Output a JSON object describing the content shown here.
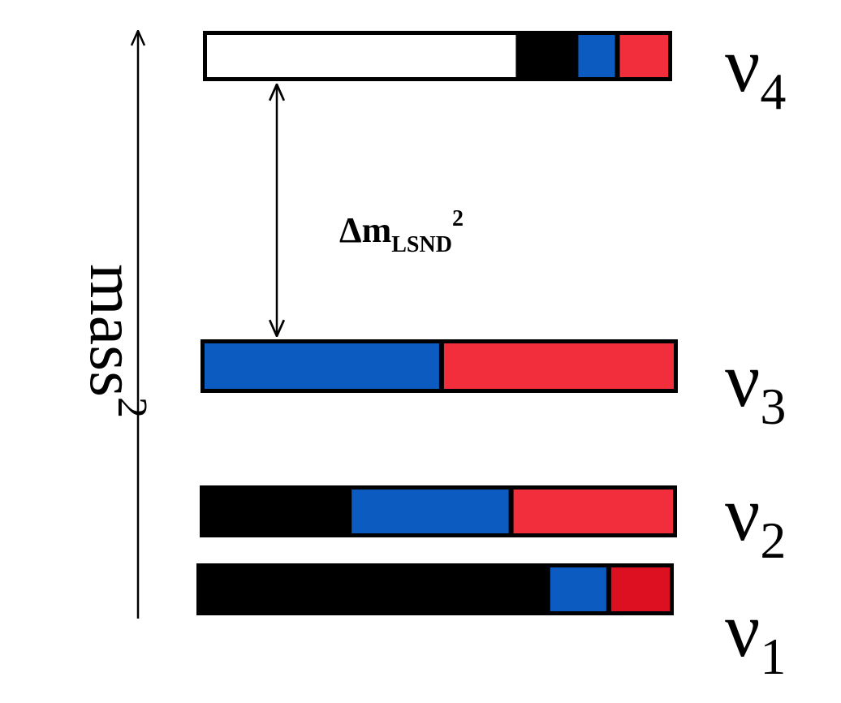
{
  "axis": {
    "label_base": "mass",
    "label_exponent": "2"
  },
  "gap_label": {
    "delta": "Δm",
    "subscript": "LSND",
    "exponent": "2"
  },
  "colors": {
    "frame": "#000000",
    "white": "#ffffff",
    "sterile": "#ffffff",
    "electron": "#000000",
    "muon": "#0b5bc0",
    "tau": "#f22d3c",
    "tau_dark": "#dc1020"
  },
  "states": [
    {
      "id": "nu4",
      "label_main": "ν",
      "label_sub": "4",
      "segments": [
        {
          "flavor": "sterile",
          "fraction": 0.675
        },
        {
          "flavor": "electron",
          "fraction": 0.125
        },
        {
          "flavor": "muon",
          "fraction": 0.09
        },
        {
          "flavor": "tau",
          "fraction": 0.11
        }
      ]
    },
    {
      "id": "nu3",
      "label_main": "ν",
      "label_sub": "3",
      "segments": [
        {
          "flavor": "muon",
          "fraction": 0.505
        },
        {
          "flavor": "tau",
          "fraction": 0.495
        }
      ]
    },
    {
      "id": "nu2",
      "label_main": "ν",
      "label_sub": "2",
      "segments": [
        {
          "flavor": "electron",
          "fraction": 0.31
        },
        {
          "flavor": "muon",
          "fraction": 0.345
        },
        {
          "flavor": "tau",
          "fraction": 0.345
        }
      ]
    },
    {
      "id": "nu1",
      "label_main": "ν",
      "label_sub": "1",
      "segments": [
        {
          "flavor": "electron",
          "fraction": 0.74
        },
        {
          "flavor": "muon",
          "fraction": 0.13
        },
        {
          "flavor": "tau_dark",
          "fraction": 0.13
        }
      ]
    }
  ]
}
